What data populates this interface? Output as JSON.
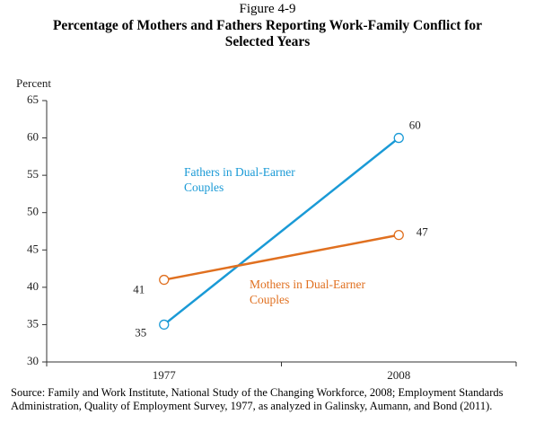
{
  "chart_data": {
    "type": "line",
    "figure_label": "Figure 4-9",
    "title": "Percentage of Mothers and Fathers Reporting Work-Family Conflict for Selected Years",
    "ylabel": "Percent",
    "categories": [
      "1977",
      "2008"
    ],
    "series": [
      {
        "name": "Fathers in Dual-Earner Couples",
        "color": "#1a9ad6",
        "values": [
          35,
          60
        ]
      },
      {
        "name": "Mothers in Dual-Earner Couples",
        "color": "#e07020",
        "values": [
          41,
          47
        ]
      }
    ],
    "ylim": [
      30,
      65
    ],
    "yticks": [
      30,
      35,
      40,
      45,
      50,
      55,
      60,
      65
    ],
    "grid": false,
    "source": "Source: Family and Work Institute, National Study of the Changing Workforce, 2008; Employment Standards Administration, Quality of Employment Survey, 1977, as analyzed in Galinsky, Aumann, and Bond (2011)."
  }
}
